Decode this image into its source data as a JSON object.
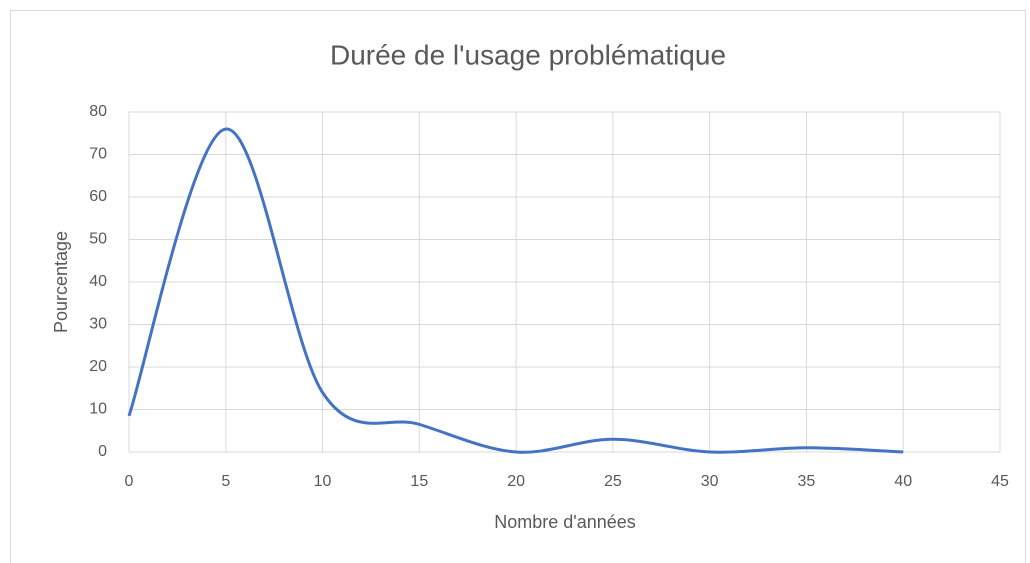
{
  "chart_data": {
    "type": "line",
    "title": "Durée de l'usage problématique",
    "x_label": "Nombre d'années",
    "y_label": "Pourcentage",
    "x": [
      0,
      5,
      10,
      15,
      20,
      25,
      30,
      35,
      40
    ],
    "series": [
      {
        "name": "Pourcentage",
        "color": "#4472c4",
        "values": [
          8.5,
          76,
          14,
          6.5,
          0,
          3,
          0,
          1,
          0
        ]
      }
    ],
    "xlim": [
      0,
      45
    ],
    "xticks": [
      0,
      5,
      10,
      15,
      20,
      25,
      30,
      35,
      40,
      45
    ],
    "ylim": [
      0,
      80
    ],
    "yticks": [
      0,
      10,
      20,
      30,
      40,
      50,
      60,
      70,
      80
    ],
    "grid": true,
    "smooth": true
  }
}
